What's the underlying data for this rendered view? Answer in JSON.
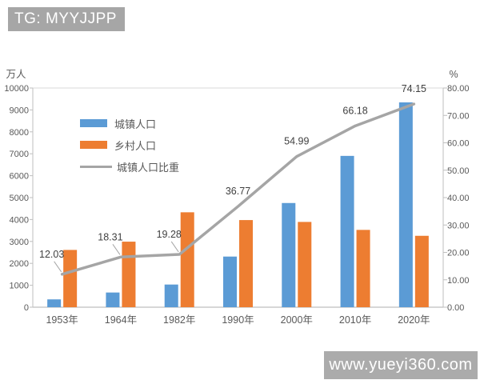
{
  "overlays": {
    "tg_badge": "TG: MYYJJPP",
    "watermark": "www.yueyi360.com"
  },
  "colors": {
    "urban_bar": "#5B9BD5",
    "rural_bar": "#ED7D31",
    "share_line": "#A5A5A5",
    "axis_line": "#BFBFBF",
    "grid_line": "#D9D9D9",
    "tick_text": "#595959",
    "data_label_text": "#404040",
    "badge_bg": "#A6A6A6",
    "watermark_bg": "#ABABAB"
  },
  "legend": {
    "items": [
      {
        "label": "城镇人口",
        "type": "bar",
        "color": "#5B9BD5"
      },
      {
        "label": "乡村人口",
        "type": "bar",
        "color": "#ED7D31"
      },
      {
        "label": "城镇人口比重",
        "type": "line",
        "color": "#A5A5A5"
      }
    ]
  },
  "chart_data": {
    "type": "bar",
    "subtype": "combo-bar-line-dual-axis",
    "categories": [
      "1953年",
      "1964年",
      "1982年",
      "1990年",
      "2000年",
      "2010年",
      "2020年"
    ],
    "series": [
      {
        "name": "城镇人口",
        "chart_type": "bar",
        "axis": "left",
        "color": "#5B9BD5",
        "values": [
          357,
          670,
          1034,
          2310,
          4753,
          6903,
          9344
        ]
      },
      {
        "name": "乡村人口",
        "chart_type": "bar",
        "axis": "left",
        "color": "#ED7D31",
        "values": [
          2613,
          2990,
          4330,
          3975,
          3890,
          3527,
          3257
        ]
      },
      {
        "name": "城镇人口比重",
        "chart_type": "line",
        "axis": "right",
        "color": "#A5A5A5",
        "values": [
          12.03,
          18.31,
          19.28,
          36.77,
          54.99,
          66.18,
          74.15
        ]
      }
    ],
    "line_data_labels": [
      "12.03",
      "18.31",
      "19.28",
      "36.77",
      "54.99",
      "66.18",
      "74.15"
    ],
    "left_axis": {
      "title": "万人",
      "min": 0,
      "max": 10000,
      "tick_labels": [
        "0",
        "1000",
        "2000",
        "3000",
        "4000",
        "5000",
        "6000",
        "7000",
        "8000",
        "9000",
        "10000"
      ]
    },
    "right_axis": {
      "title": "%",
      "min": 0,
      "max": 80,
      "tick_labels": [
        "0.00",
        "10.00",
        "20.00",
        "30.00",
        "40.00",
        "50.00",
        "60.00",
        "70.00",
        "80.00"
      ]
    },
    "grid": "top-border-only",
    "legend_position": "upper-left-inside"
  }
}
